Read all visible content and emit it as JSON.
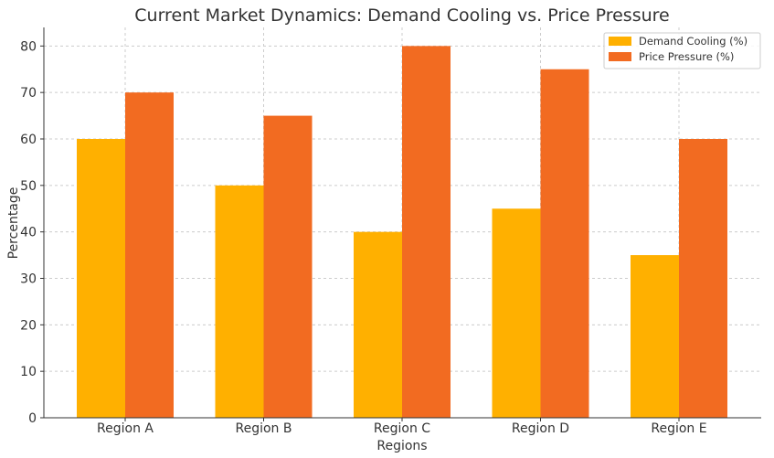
{
  "chart_data": {
    "type": "bar",
    "title": "Current Market Dynamics: Demand Cooling vs. Price Pressure",
    "xlabel": "Regions",
    "ylabel": "Percentage",
    "categories": [
      "Region A",
      "Region B",
      "Region C",
      "Region D",
      "Region E"
    ],
    "series": [
      {
        "name": "Demand Cooling (%)",
        "values": [
          60,
          50,
          40,
          45,
          35
        ],
        "color": "#FFB000"
      },
      {
        "name": "Price Pressure (%)",
        "values": [
          70,
          65,
          80,
          75,
          60
        ],
        "color": "#F26B21"
      }
    ],
    "ylim": [
      0,
      84
    ],
    "yticks": [
      0,
      10,
      20,
      30,
      40,
      50,
      60,
      70,
      80
    ],
    "grid": true,
    "legend_position": "top-right"
  }
}
